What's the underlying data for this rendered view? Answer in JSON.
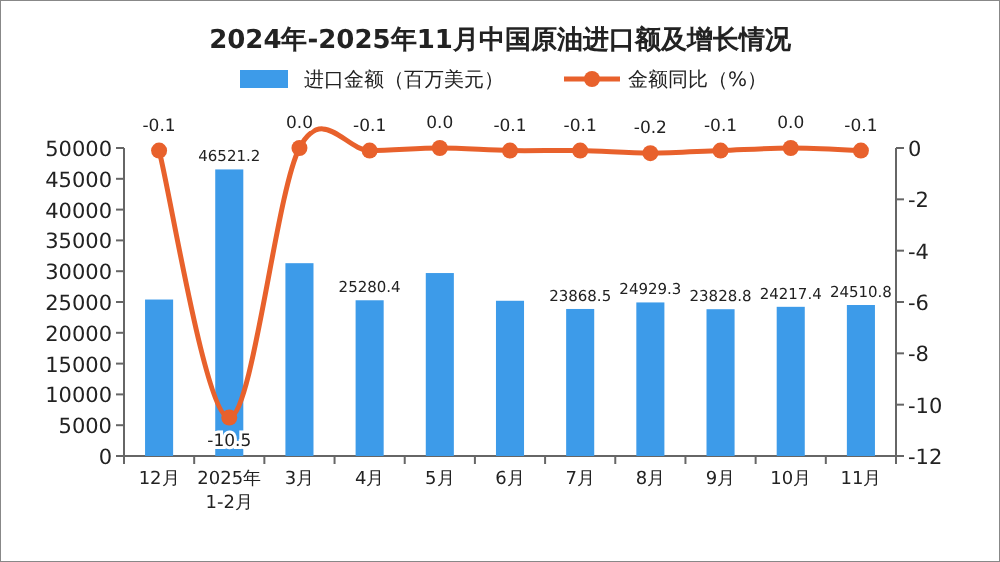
{
  "chart_data": {
    "type": "bar",
    "title": "2024年-2025年11月中国原油进口额及增长情况",
    "categories": [
      "12月",
      "2025年\n1-2月",
      "3月",
      "4月",
      "5月",
      "6月",
      "7月",
      "8月",
      "9月",
      "10月",
      "11月"
    ],
    "series": [
      {
        "name": "进口金额（百万美元）",
        "color": "#3d9be9",
        "values": [
          25400,
          46521.2,
          31300,
          25280.4,
          29700,
          25200,
          23868.5,
          24929.3,
          23828.8,
          24217.4,
          24510.8
        ],
        "value_labels": [
          null,
          "46521.2",
          null,
          "25280.4",
          null,
          null,
          "23868.5",
          "24929.3",
          "23828.8",
          "24217.4",
          "24510.8"
        ]
      },
      {
        "name": "金额同比（%）",
        "type": "line",
        "axis": "y2",
        "color": "#e8612c",
        "marker": "circle",
        "values": [
          -0.1,
          -10.5,
          0.0,
          -0.1,
          0.0,
          -0.1,
          -0.1,
          -0.2,
          -0.1,
          0.0,
          -0.1
        ],
        "value_labels": [
          "-0.1",
          "-10.5",
          "0.0",
          "-0.1",
          "0.0",
          "-0.1",
          "-0.1",
          "-0.2",
          "-0.1",
          "0.0",
          "-0.1"
        ]
      }
    ],
    "ylim": [
      0,
      50000
    ],
    "yticks": [
      0,
      5000,
      10000,
      15000,
      20000,
      25000,
      30000,
      35000,
      40000,
      45000,
      50000
    ],
    "y2lim": [
      -12,
      0
    ],
    "y2ticks": [
      -12,
      -10,
      -8,
      -6,
      -4,
      -2,
      0
    ],
    "legend": "top"
  }
}
